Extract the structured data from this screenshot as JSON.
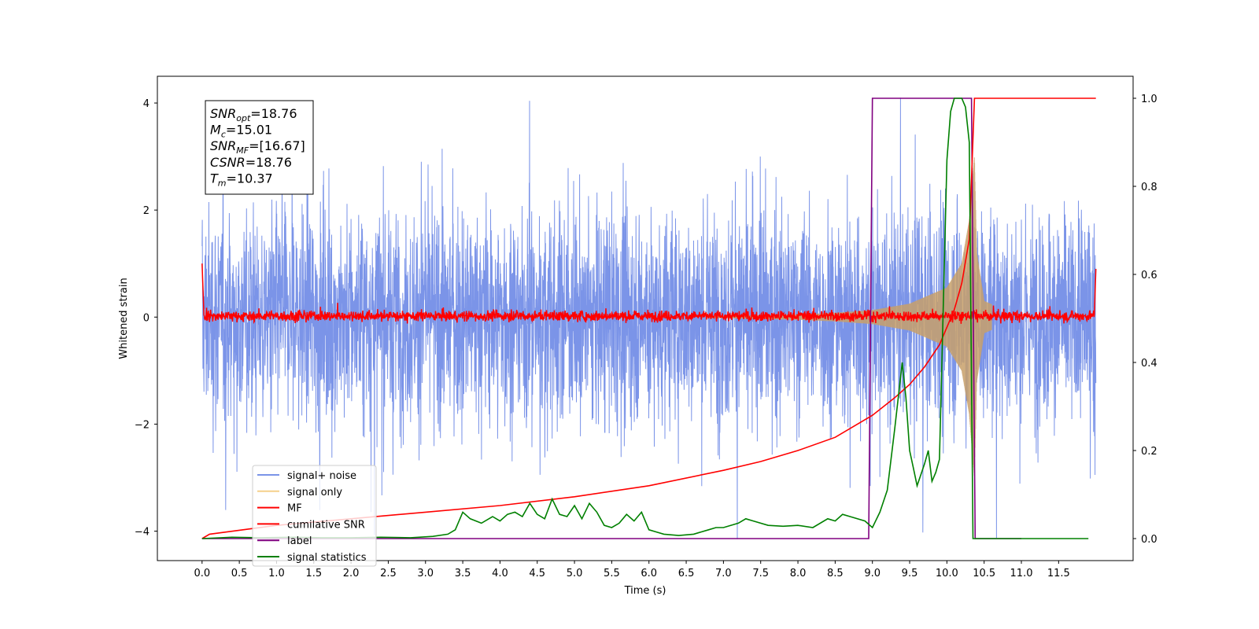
{
  "chart_data": {
    "type": "line",
    "xlabel": "Time (s)",
    "ylabel": "Whitened strain",
    "xlim": [
      -0.6,
      12.5
    ],
    "ylim": [
      -4.55,
      4.5
    ],
    "y2lim": [
      -0.05,
      1.05
    ],
    "x_ticks": [
      "0.0",
      "0.5",
      "1.0",
      "1.5",
      "2.0",
      "2.5",
      "3.0",
      "3.5",
      "4.0",
      "4.5",
      "5.0",
      "5.5",
      "6.0",
      "6.5",
      "7.0",
      "7.5",
      "8.0",
      "8.5",
      "9.0",
      "9.5",
      "10.0",
      "10.5",
      "11.0",
      "11.5"
    ],
    "y_ticks": [
      "−4",
      "−2",
      "0",
      "2",
      "4"
    ],
    "y2_ticks": [
      "0.0",
      "0.2",
      "0.4",
      "0.6",
      "0.8",
      "1.0"
    ],
    "annotation": {
      "lines": [
        {
          "base": "SNR",
          "sub": "opt",
          "value": "=18.76"
        },
        {
          "base": "M",
          "sub": "c",
          "value": "=15.01"
        },
        {
          "base": "SNR",
          "sub": "MF",
          "value": "=[16.67]"
        },
        {
          "base": "CSNR",
          "sub": "",
          "value": "=18.76"
        },
        {
          "base": "T",
          "sub": "m",
          "value": "=10.37"
        }
      ]
    },
    "legend": {
      "location": "lower-left",
      "entries": [
        {
          "label": "signal+ noise",
          "color": "#7b94e8"
        },
        {
          "label": "signal only",
          "color": "#f5d08a"
        },
        {
          "label": "MF",
          "color": "#ff0000"
        },
        {
          "label": "cumilative SNR",
          "color": "#ff0000"
        },
        {
          "label": "label",
          "color": "#800080"
        },
        {
          "label": "signal statistics",
          "color": "#008000"
        }
      ]
    },
    "series": [
      {
        "name": "signal+ noise",
        "axis": "left",
        "color": "#7b94e8",
        "t_range": [
          0.0,
          12.0
        ],
        "noise_std": 1.0
      },
      {
        "name": "signal only",
        "axis": "left",
        "color": "#c8a06a",
        "t_range": [
          0.0,
          12.0
        ],
        "merger_time": 10.37,
        "envelope": {
          "t": [
            7.0,
            8.0,
            8.5,
            9.0,
            9.5,
            10.0,
            10.2,
            10.3,
            10.37,
            10.4,
            10.5,
            11.0
          ],
          "amp": [
            0.02,
            0.05,
            0.08,
            0.13,
            0.25,
            0.55,
            1.0,
            1.8,
            3.0,
            1.2,
            0.3,
            0.0
          ]
        }
      },
      {
        "name": "MF",
        "axis": "left",
        "color": "#ff0000",
        "t_range": [
          0.0,
          12.0
        ],
        "noise_std": 0.05,
        "start_value": 1.0,
        "end_value": 0.9
      },
      {
        "name": "cumilative SNR",
        "axis": "right",
        "color": "#ff0000",
        "x": [
          0.0,
          0.1,
          1.0,
          2.0,
          3.0,
          4.0,
          5.0,
          6.0,
          7.0,
          7.5,
          8.0,
          8.5,
          9.0,
          9.3,
          9.5,
          9.7,
          9.9,
          10.0,
          10.1,
          10.2,
          10.3,
          10.37,
          12.0
        ],
        "y": [
          0.0,
          0.01,
          0.03,
          0.045,
          0.06,
          0.075,
          0.095,
          0.12,
          0.155,
          0.175,
          0.2,
          0.23,
          0.28,
          0.32,
          0.35,
          0.39,
          0.44,
          0.48,
          0.52,
          0.58,
          0.68,
          1.0,
          1.0
        ]
      },
      {
        "name": "label",
        "axis": "right",
        "color": "#800080",
        "x": [
          0.0,
          8.95,
          9.0,
          10.33,
          10.38,
          11.0
        ],
        "y": [
          0.0,
          0.0,
          1.0,
          1.0,
          0.0,
          0.0
        ]
      },
      {
        "name": "signal statistics",
        "axis": "right",
        "color": "#008000",
        "x": [
          0.0,
          0.4,
          0.8,
          1.2,
          1.6,
          2.0,
          2.4,
          2.8,
          3.1,
          3.3,
          3.4,
          3.5,
          3.6,
          3.75,
          3.9,
          4.0,
          4.1,
          4.2,
          4.3,
          4.4,
          4.5,
          4.6,
          4.7,
          4.8,
          4.9,
          5.0,
          5.1,
          5.2,
          5.3,
          5.4,
          5.5,
          5.6,
          5.7,
          5.8,
          5.9,
          6.0,
          6.1,
          6.2,
          6.4,
          6.6,
          6.8,
          6.9,
          7.0,
          7.2,
          7.3,
          7.4,
          7.6,
          7.8,
          8.0,
          8.2,
          8.4,
          8.5,
          8.6,
          8.7,
          8.9,
          9.0,
          9.1,
          9.2,
          9.3,
          9.4,
          9.45,
          9.5,
          9.55,
          9.6,
          9.7,
          9.75,
          9.8,
          9.85,
          9.9,
          10.0,
          10.05,
          10.1,
          10.2,
          10.25,
          10.3,
          10.35,
          10.4,
          10.5,
          11.0,
          11.5,
          11.9
        ],
        "y": [
          0.0,
          0.003,
          0.002,
          0.003,
          0.002,
          0.002,
          0.003,
          0.002,
          0.005,
          0.01,
          0.02,
          0.06,
          0.045,
          0.035,
          0.05,
          0.04,
          0.055,
          0.06,
          0.05,
          0.08,
          0.055,
          0.045,
          0.09,
          0.055,
          0.05,
          0.075,
          0.045,
          0.08,
          0.06,
          0.03,
          0.025,
          0.035,
          0.055,
          0.04,
          0.06,
          0.02,
          0.015,
          0.01,
          0.007,
          0.01,
          0.02,
          0.025,
          0.025,
          0.035,
          0.045,
          0.04,
          0.03,
          0.028,
          0.03,
          0.025,
          0.045,
          0.04,
          0.055,
          0.05,
          0.04,
          0.025,
          0.06,
          0.11,
          0.25,
          0.4,
          0.32,
          0.2,
          0.16,
          0.12,
          0.17,
          0.2,
          0.13,
          0.15,
          0.18,
          0.86,
          0.97,
          1.0,
          1.0,
          0.98,
          0.9,
          0.0,
          0.0,
          0.0,
          0.0,
          0.0,
          0.0
        ]
      }
    ]
  }
}
